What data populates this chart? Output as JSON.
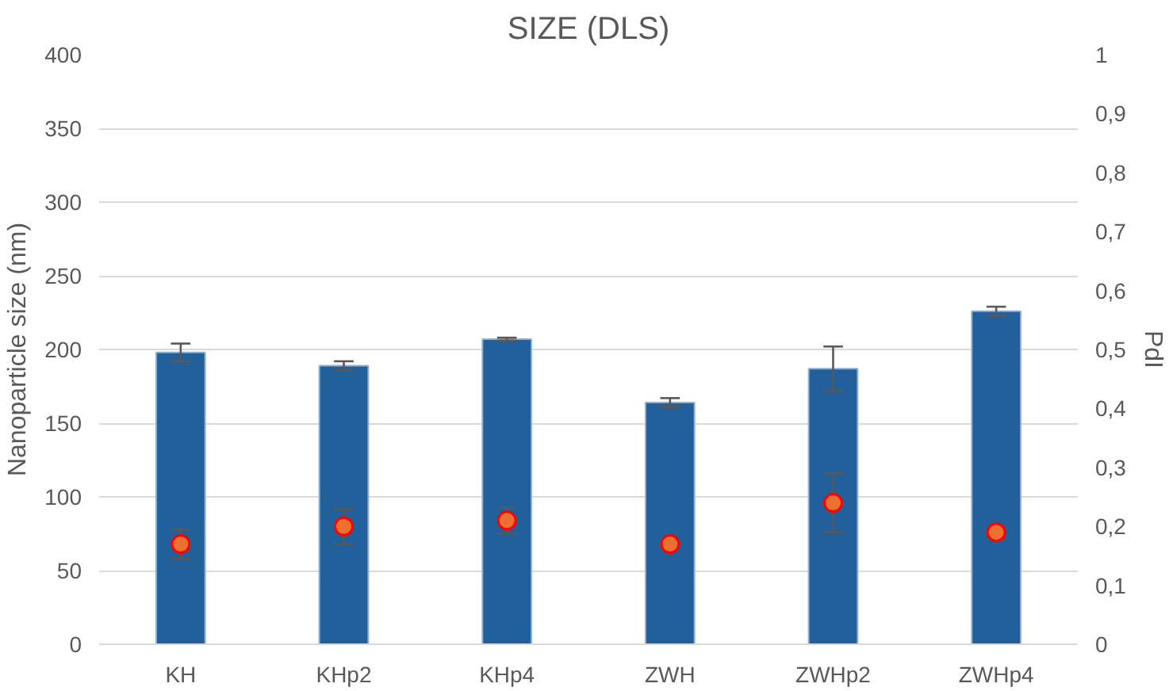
{
  "chart_data": {
    "type": "bar",
    "title": "SIZE (DLS)",
    "ylabel": "Nanoparticle size (nm)",
    "y2label": "PdI",
    "categories": [
      "KH",
      "KHp2",
      "KHp4",
      "ZWH",
      "ZWHp2",
      "ZWHp4"
    ],
    "series": [
      {
        "color": "#22609b",
        "values": [
          198,
          189,
          207,
          164,
          187,
          226
        ],
        "errors": [
          6,
          3,
          1,
          3,
          15,
          3
        ]
      },
      {
        "type": "scatter",
        "axis": "y2",
        "color": "#ed7031",
        "values": [
          0.17,
          0.2,
          0.21,
          0.17,
          0.24,
          0.19
        ],
        "errors": [
          0.025,
          0.03,
          0.022,
          null,
          0.05,
          null
        ]
      }
    ],
    "ylim": [
      0,
      400
    ],
    "yticks": [
      0,
      50,
      100,
      150,
      200,
      250,
      300,
      350,
      400
    ],
    "y2lim": [
      0,
      1
    ],
    "y2ticks": [
      0,
      {
        "value": 0.1,
        "label": "0,1"
      },
      {
        "value": 0.2,
        "label": "0,2"
      },
      {
        "value": 0.3,
        "label": "0,3"
      },
      {
        "value": 0.4,
        "label": "0,4"
      },
      {
        "value": 0.5,
        "label": "0,5"
      },
      {
        "value": 0.6,
        "label": "0,6"
      },
      {
        "value": 0.7,
        "label": "0,7"
      },
      {
        "value": 0.8,
        "label": "0,8"
      },
      {
        "value": 0.9,
        "label": "0,9"
      },
      1
    ],
    "grid": "y",
    "marker": "circle"
  }
}
